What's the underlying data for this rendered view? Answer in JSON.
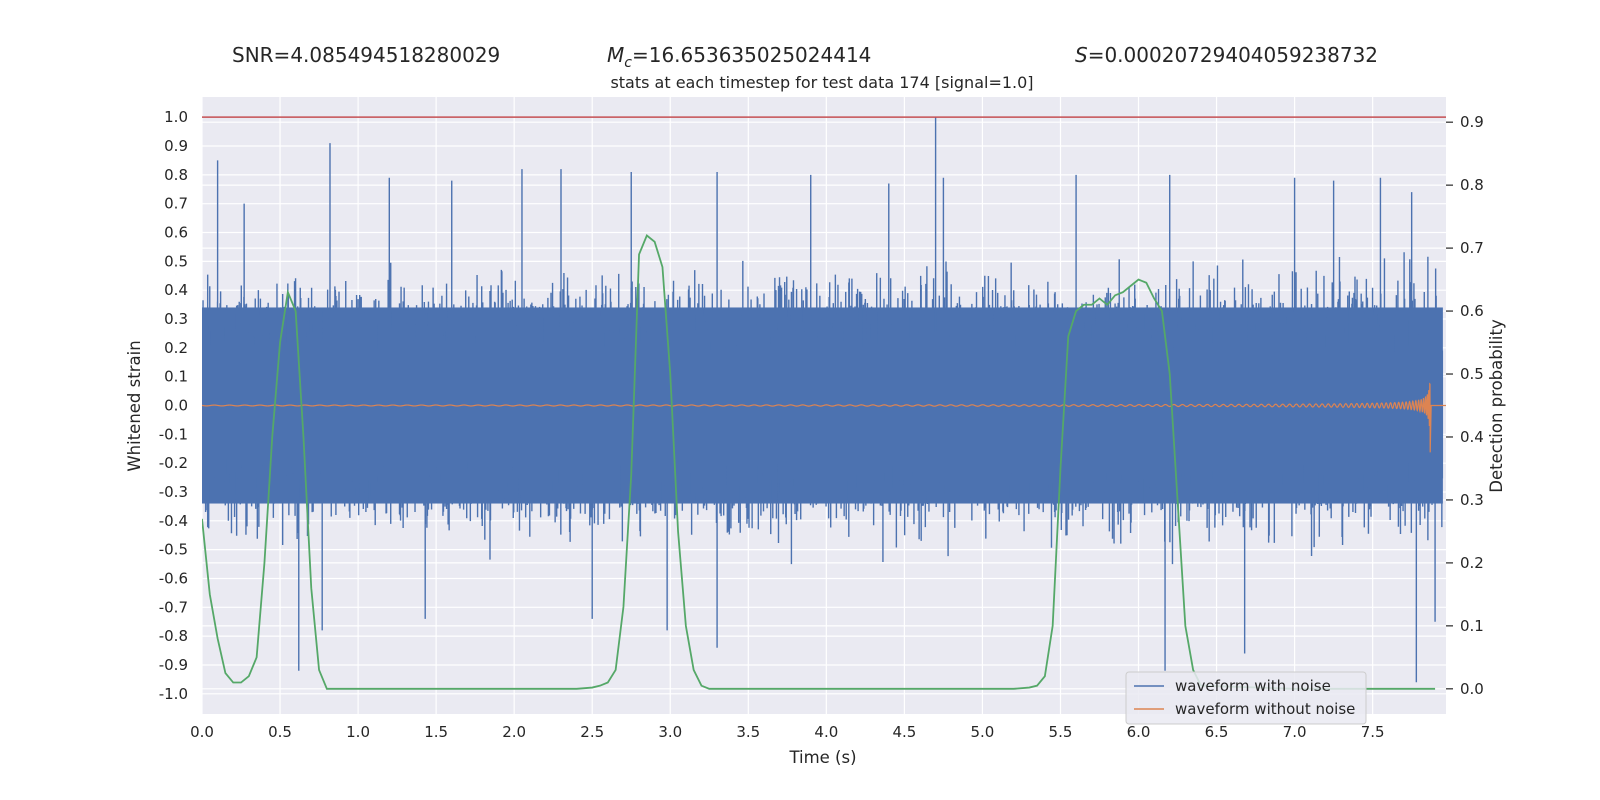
{
  "stats": {
    "snr_label": "SNR=",
    "snr_value": "4.085494518280029",
    "mc_symbol": "M",
    "mc_sub": "c",
    "mc_value": "=16.653635025024414",
    "s_symbol": "S",
    "s_value": "=0.00020729404059238732"
  },
  "chart_data": {
    "type": "line",
    "title": "stats at each timestep for test data 174 [signal=1.0]",
    "xlabel": "Time (s)",
    "ylabel": "Whitened strain",
    "y2label": "Detection probability",
    "xlim": [
      0,
      7.97
    ],
    "ylim": [
      -1.07,
      1.07
    ],
    "y2lim": [
      -0.04,
      0.94
    ],
    "xticks": [
      "0.0",
      "0.5",
      "1.0",
      "1.5",
      "2.0",
      "2.5",
      "3.0",
      "3.5",
      "4.0",
      "4.5",
      "5.0",
      "5.5",
      "6.0",
      "6.5",
      "7.0",
      "7.5"
    ],
    "yticks": [
      "1.0",
      "0.9",
      "0.8",
      "0.7",
      "0.6",
      "0.5",
      "0.4",
      "0.3",
      "0.2",
      "0.1",
      "0.0",
      "-0.1",
      "-0.2",
      "-0.3",
      "-0.4",
      "-0.5",
      "-0.6",
      "-0.7",
      "-0.8",
      "-0.9",
      "-1.0"
    ],
    "y2ticks": [
      "0.9",
      "0.8",
      "0.7",
      "0.6",
      "0.5",
      "0.4",
      "0.3",
      "0.2",
      "0.1",
      "0.0"
    ],
    "grid": true,
    "legend_position": "bottom-right",
    "threshold_line": {
      "y": 1.0,
      "color": "#c44e52"
    },
    "series": [
      {
        "name": "waveform with noise",
        "color": "#4c72b0",
        "axis": "left",
        "description_range": [
          -1.0,
          1.0
        ],
        "spikes": [
          {
            "x": 0.1,
            "y": 0.85
          },
          {
            "x": 0.27,
            "y": 0.7
          },
          {
            "x": 0.82,
            "y": 0.91
          },
          {
            "x": 1.2,
            "y": 0.79
          },
          {
            "x": 1.6,
            "y": 0.78
          },
          {
            "x": 2.05,
            "y": 0.82
          },
          {
            "x": 2.3,
            "y": 0.82
          },
          {
            "x": 2.75,
            "y": 0.81
          },
          {
            "x": 3.3,
            "y": 0.81
          },
          {
            "x": 3.9,
            "y": 0.8
          },
          {
            "x": 4.4,
            "y": 0.77
          },
          {
            "x": 4.7,
            "y": 1.0
          },
          {
            "x": 4.75,
            "y": 0.79
          },
          {
            "x": 5.6,
            "y": 0.8
          },
          {
            "x": 6.2,
            "y": 0.8
          },
          {
            "x": 7.0,
            "y": 0.79
          },
          {
            "x": 7.25,
            "y": 0.78
          },
          {
            "x": 7.55,
            "y": 0.79
          },
          {
            "x": 7.75,
            "y": 0.74
          },
          {
            "x": 0.62,
            "y": -0.92
          },
          {
            "x": 0.77,
            "y": -0.78
          },
          {
            "x": 1.43,
            "y": -0.74
          },
          {
            "x": 2.5,
            "y": -0.74
          },
          {
            "x": 2.98,
            "y": -0.78
          },
          {
            "x": 3.3,
            "y": -0.84
          },
          {
            "x": 6.17,
            "y": -0.92
          },
          {
            "x": 6.68,
            "y": -0.86
          },
          {
            "x": 7.78,
            "y": -0.96
          },
          {
            "x": 7.9,
            "y": -0.75
          }
        ]
      },
      {
        "name": "waveform without noise",
        "color": "#dd8452",
        "axis": "left",
        "chirp": {
          "start": 0.0,
          "merger": 7.87,
          "peak_amplitude": 0.24
        }
      },
      {
        "name": "detection probability",
        "color": "#55a868",
        "axis": "right",
        "x": [
          0.0,
          0.05,
          0.1,
          0.15,
          0.2,
          0.25,
          0.3,
          0.35,
          0.4,
          0.45,
          0.5,
          0.55,
          0.6,
          0.65,
          0.7,
          0.75,
          0.8,
          1.0,
          1.5,
          2.0,
          2.4,
          2.5,
          2.55,
          2.6,
          2.65,
          2.7,
          2.75,
          2.8,
          2.85,
          2.9,
          2.95,
          3.0,
          3.05,
          3.1,
          3.15,
          3.2,
          3.25,
          3.3,
          3.5,
          4.0,
          4.5,
          5.0,
          5.2,
          5.3,
          5.35,
          5.4,
          5.45,
          5.5,
          5.55,
          5.6,
          5.65,
          5.7,
          5.75,
          5.8,
          5.85,
          5.9,
          5.95,
          6.0,
          6.05,
          6.1,
          6.15,
          6.2,
          6.25,
          6.3,
          6.35,
          6.4,
          7.0,
          7.5,
          7.9
        ],
        "y": [
          0.27,
          0.15,
          0.08,
          0.025,
          0.01,
          0.01,
          0.02,
          0.05,
          0.2,
          0.4,
          0.55,
          0.63,
          0.6,
          0.4,
          0.16,
          0.03,
          0.0,
          0.0,
          0.0,
          0.0,
          0.0,
          0.002,
          0.005,
          0.01,
          0.03,
          0.13,
          0.34,
          0.69,
          0.72,
          0.71,
          0.67,
          0.5,
          0.25,
          0.1,
          0.03,
          0.005,
          0.0,
          0.0,
          0.0,
          0.0,
          0.0,
          0.0,
          0.0,
          0.002,
          0.005,
          0.02,
          0.1,
          0.35,
          0.56,
          0.6,
          0.61,
          0.61,
          0.62,
          0.61,
          0.625,
          0.63,
          0.64,
          0.65,
          0.645,
          0.62,
          0.6,
          0.5,
          0.3,
          0.1,
          0.03,
          0.005,
          0.0,
          0.0,
          0.0
        ]
      }
    ]
  }
}
